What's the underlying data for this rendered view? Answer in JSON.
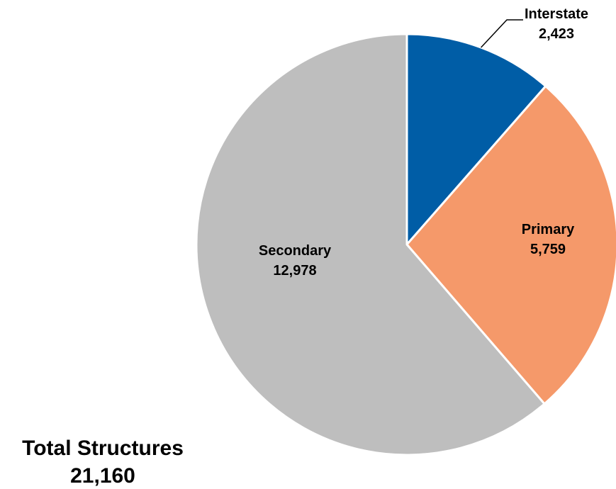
{
  "chart_data": {
    "type": "pie",
    "title": "",
    "slices": [
      {
        "name": "Interstate",
        "value": 2423,
        "value_label": "2,423",
        "color": "#005DA6"
      },
      {
        "name": "Primary",
        "value": 5759,
        "value_label": "5,759",
        "color": "#F5996A"
      },
      {
        "name": "Secondary",
        "value": 12978,
        "value_label": "12,978",
        "color": "#BEBEBE"
      }
    ],
    "start_angle_deg": 0,
    "direction": "clockwise",
    "slice_border_color": "#FFFFFF",
    "total": {
      "label": "Total Structures",
      "value_label": "21,160"
    }
  }
}
